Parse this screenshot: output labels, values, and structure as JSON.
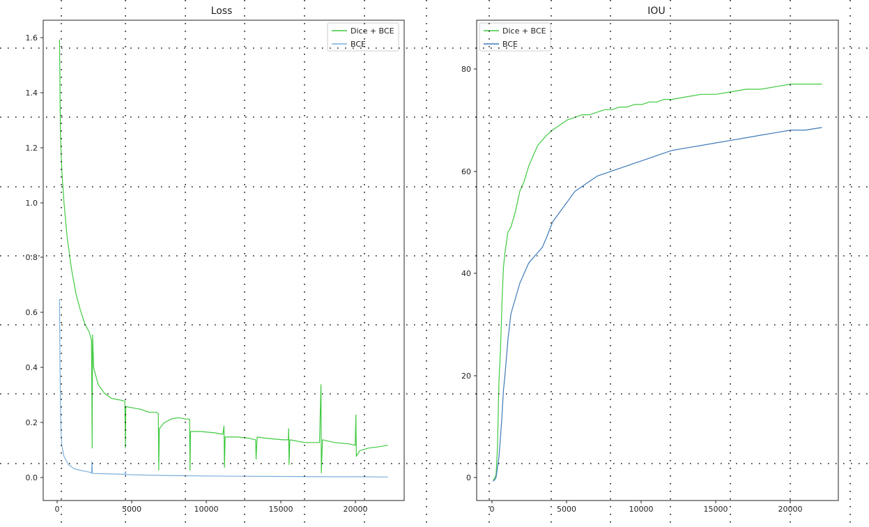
{
  "chart_data": [
    {
      "type": "line",
      "title": "Loss",
      "xlabel": "",
      "ylabel": "",
      "xlim": [
        -1100,
        23200
      ],
      "ylim": [
        -0.08,
        1.66
      ],
      "x_ticks": [
        0,
        5000,
        10000,
        15000,
        20000
      ],
      "y_ticks": [
        0.0,
        0.2,
        0.4,
        0.6,
        0.8,
        1.0,
        1.2,
        1.4,
        1.6
      ],
      "x_tick_labels": [
        "0",
        "5000",
        "10000",
        "15000",
        "20000"
      ],
      "y_tick_labels": [
        "0.0",
        "0.2",
        "0.4",
        "0.6",
        "0.8",
        "1.0",
        "1.2",
        "1.4",
        "1.6"
      ],
      "legend_position": "top-right",
      "grid": false,
      "series": [
        {
          "name": "Dice + BCE",
          "color": "#3fc93f",
          "points": [
            [
              0,
              1.59
            ],
            [
              60,
              1.25
            ],
            [
              150,
              1.12
            ],
            [
              300,
              1.0
            ],
            [
              500,
              0.88
            ],
            [
              800,
              0.76
            ],
            [
              1100,
              0.67
            ],
            [
              1400,
              0.61
            ],
            [
              1700,
              0.56
            ],
            [
              2000,
              0.53
            ],
            [
              2150,
              0.5
            ],
            [
              2200,
              0.11
            ],
            [
              2220,
              0.52
            ],
            [
              2300,
              0.4
            ],
            [
              2600,
              0.34
            ],
            [
              3000,
              0.31
            ],
            [
              3500,
              0.29
            ],
            [
              4000,
              0.285
            ],
            [
              4400,
              0.28
            ],
            [
              4430,
              0.11
            ],
            [
              4460,
              0.26
            ],
            [
              5000,
              0.255
            ],
            [
              5500,
              0.25
            ],
            [
              6000,
              0.24
            ],
            [
              6500,
              0.24
            ],
            [
              6650,
              0.235
            ],
            [
              6680,
              0.03
            ],
            [
              6720,
              0.18
            ],
            [
              7000,
              0.2
            ],
            [
              7500,
              0.215
            ],
            [
              8000,
              0.22
            ],
            [
              8500,
              0.215
            ],
            [
              8750,
              0.215
            ],
            [
              8780,
              0.03
            ],
            [
              8820,
              0.17
            ],
            [
              9500,
              0.17
            ],
            [
              10500,
              0.165
            ],
            [
              11000,
              0.16
            ],
            [
              11070,
              0.19
            ],
            [
              11100,
              0.04
            ],
            [
              11150,
              0.15
            ],
            [
              12000,
              0.15
            ],
            [
              12800,
              0.145
            ],
            [
              13200,
              0.14
            ],
            [
              13230,
              0.07
            ],
            [
              13300,
              0.15
            ],
            [
              14000,
              0.145
            ],
            [
              15000,
              0.14
            ],
            [
              15400,
              0.14
            ],
            [
              15420,
              0.18
            ],
            [
              15450,
              0.05
            ],
            [
              15500,
              0.14
            ],
            [
              16500,
              0.13
            ],
            [
              17500,
              0.13
            ],
            [
              17600,
              0.34
            ],
            [
              17620,
              0.02
            ],
            [
              17700,
              0.14
            ],
            [
              18500,
              0.13
            ],
            [
              19500,
              0.125
            ],
            [
              19900,
              0.12
            ],
            [
              19950,
              0.23
            ],
            [
              19980,
              0.08
            ],
            [
              20200,
              0.1
            ],
            [
              20800,
              0.11
            ],
            [
              21500,
              0.115
            ],
            [
              22100,
              0.12
            ]
          ]
        },
        {
          "name": "BCE",
          "color": "#7aaedb",
          "points": [
            [
              0,
              0.65
            ],
            [
              30,
              0.4
            ],
            [
              80,
              0.2
            ],
            [
              150,
              0.12
            ],
            [
              300,
              0.08
            ],
            [
              600,
              0.05
            ],
            [
              1000,
              0.035
            ],
            [
              1500,
              0.028
            ],
            [
              2000,
              0.023
            ],
            [
              2150,
              0.02
            ],
            [
              2180,
              0.06
            ],
            [
              2220,
              0.018
            ],
            [
              3000,
              0.017
            ],
            [
              4400,
              0.015
            ],
            [
              4430,
              0.025
            ],
            [
              4470,
              0.014
            ],
            [
              6000,
              0.012
            ],
            [
              8000,
              0.01
            ],
            [
              10000,
              0.009
            ],
            [
              12000,
              0.008
            ],
            [
              15000,
              0.007
            ],
            [
              18000,
              0.006
            ],
            [
              20000,
              0.006
            ],
            [
              22100,
              0.005
            ]
          ]
        }
      ]
    },
    {
      "type": "line",
      "title": "IOU",
      "xlabel": "",
      "ylabel": "",
      "xlim": [
        -1100,
        23200
      ],
      "ylim": [
        -3.5,
        90.5
      ],
      "x_ticks": [
        0,
        5000,
        10000,
        15000,
        20000
      ],
      "y_ticks": [
        0,
        20,
        40,
        60,
        80
      ],
      "x_tick_labels": [
        "0",
        "5000",
        "10000",
        "15000",
        "20000"
      ],
      "y_tick_labels": [
        "0",
        "20",
        "40",
        "60",
        "80"
      ],
      "legend_position": "top-left",
      "grid": false,
      "series": [
        {
          "name": "Dice + BCE",
          "color": "#3fc93f",
          "points": [
            [
              0,
              0.5
            ],
            [
              100,
              0.8
            ],
            [
              200,
              1.5
            ],
            [
              300,
              7
            ],
            [
              400,
              20
            ],
            [
              500,
              26
            ],
            [
              600,
              35
            ],
            [
              700,
              42
            ],
            [
              800,
              45
            ],
            [
              1000,
              49
            ],
            [
              1200,
              50
            ],
            [
              1500,
              53
            ],
            [
              1800,
              57
            ],
            [
              2100,
              59
            ],
            [
              2400,
              62
            ],
            [
              2700,
              64
            ],
            [
              3000,
              66
            ],
            [
              3300,
              67
            ],
            [
              3600,
              68
            ],
            [
              4000,
              69
            ],
            [
              4500,
              70
            ],
            [
              5000,
              71
            ],
            [
              5500,
              71.5
            ],
            [
              6000,
              72
            ],
            [
              6500,
              72
            ],
            [
              7000,
              72.5
            ],
            [
              7500,
              73
            ],
            [
              8000,
              73
            ],
            [
              8500,
              73.5
            ],
            [
              9000,
              73.5
            ],
            [
              9500,
              74
            ],
            [
              10000,
              74
            ],
            [
              10500,
              74.5
            ],
            [
              11000,
              74.5
            ],
            [
              11500,
              75
            ],
            [
              12000,
              75
            ],
            [
              13000,
              75.5
            ],
            [
              14000,
              76
            ],
            [
              15000,
              76
            ],
            [
              16000,
              76.5
            ],
            [
              17000,
              77
            ],
            [
              18000,
              77
            ],
            [
              19000,
              77.5
            ],
            [
              20000,
              78
            ],
            [
              21000,
              78
            ],
            [
              22100,
              78
            ]
          ]
        },
        {
          "name": "BCE",
          "color": "#3d79b8",
          "points": [
            [
              0,
              0.3
            ],
            [
              100,
              0.5
            ],
            [
              200,
              1
            ],
            [
              300,
              3
            ],
            [
              400,
              5
            ],
            [
              500,
              9
            ],
            [
              600,
              13
            ],
            [
              700,
              18
            ],
            [
              800,
              21
            ],
            [
              1000,
              28
            ],
            [
              1200,
              33
            ],
            [
              1500,
              36
            ],
            [
              1800,
              39
            ],
            [
              2100,
              41
            ],
            [
              2400,
              43
            ],
            [
              2700,
              44
            ],
            [
              3000,
              45
            ],
            [
              3300,
              46
            ],
            [
              3600,
              48
            ],
            [
              4000,
              51
            ],
            [
              4500,
              53
            ],
            [
              5000,
              55
            ],
            [
              5500,
              57
            ],
            [
              6000,
              58
            ],
            [
              6500,
              59
            ],
            [
              7000,
              60
            ],
            [
              7500,
              60.5
            ],
            [
              8000,
              61
            ],
            [
              8500,
              61.5
            ],
            [
              9000,
              62
            ],
            [
              9500,
              62.5
            ],
            [
              10000,
              63
            ],
            [
              10500,
              63.5
            ],
            [
              11000,
              64
            ],
            [
              11500,
              64.5
            ],
            [
              12000,
              65
            ],
            [
              13000,
              65.5
            ],
            [
              14000,
              66
            ],
            [
              15000,
              66.5
            ],
            [
              16000,
              67
            ],
            [
              17000,
              67.5
            ],
            [
              18000,
              68
            ],
            [
              19000,
              68.5
            ],
            [
              20000,
              69
            ],
            [
              21000,
              69
            ],
            [
              22100,
              69.5
            ]
          ]
        }
      ]
    }
  ]
}
